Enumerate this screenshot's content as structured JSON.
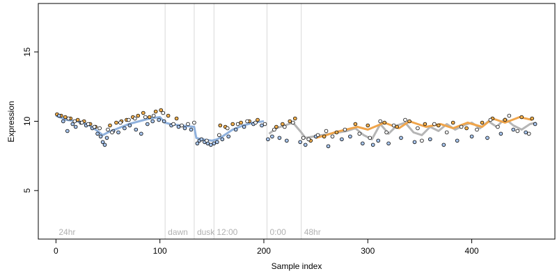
{
  "chart_data": {
    "type": "scatter",
    "title": "",
    "xlabel": "Sample index",
    "ylabel": "Expression",
    "xlim": [
      -17,
      480
    ],
    "ylim": [
      1.5,
      18.5
    ],
    "xticks": [
      0,
      100,
      200,
      300,
      400
    ],
    "yticks": [
      5,
      10,
      15
    ],
    "grid": false,
    "legend": "none",
    "colors": {
      "point_blue": "#a9c6ee",
      "point_orange": "#f4b04e",
      "point_stroke": "#000000",
      "line_blue": "#8fb1dd",
      "line_gray": "#b5b5b5",
      "line_orange": "#f0a54b",
      "divider": "#d9d9d9",
      "region_label": "#b0b0b0"
    },
    "regions": [
      {
        "label": "24hr",
        "x": 0
      },
      {
        "label": "dawn",
        "x": 105
      },
      {
        "label": "dusk",
        "x": 133
      },
      {
        "label": "12:00",
        "x": 152
      },
      {
        "label": "0:00",
        "x": 203
      },
      {
        "label": "48hr",
        "x": 236
      }
    ],
    "series": [
      {
        "color": "orange",
        "x": [
          1,
          5,
          9,
          14,
          21,
          27,
          33,
          38,
          52,
          58,
          63,
          68,
          74,
          79,
          84,
          90,
          96,
          101,
          108,
          116,
          158,
          163,
          170,
          178,
          186,
          194,
          212,
          218,
          225,
          230,
          245,
          258,
          270,
          288,
          300,
          316,
          328,
          340,
          355,
          368,
          382,
          395,
          410,
          420,
          432,
          448,
          458
        ],
        "y": [
          10.5,
          10.4,
          10.3,
          10.2,
          10.1,
          10.0,
          9.8,
          9.6,
          9.7,
          9.9,
          10.0,
          10.1,
          10.3,
          10.4,
          10.6,
          10.3,
          10.7,
          10.8,
          10.4,
          10.2,
          9.7,
          9.6,
          9.8,
          9.9,
          10.0,
          10.1,
          9.6,
          9.8,
          10.0,
          10.2,
          8.6,
          8.9,
          9.2,
          9.8,
          9.7,
          9.9,
          9.6,
          10.0,
          9.8,
          9.7,
          9.9,
          9.5,
          9.9,
          10.2,
          10.1,
          10.3,
          10.2
        ]
      },
      {
        "color": "blue",
        "x": [
          3,
          7,
          11,
          16,
          19,
          24,
          29,
          35,
          40,
          43,
          45,
          47,
          49,
          55,
          60,
          66,
          71,
          77,
          82,
          88,
          93,
          99,
          104,
          111,
          118,
          124,
          130,
          136,
          138,
          140,
          143,
          146,
          149,
          152,
          155,
          160,
          166,
          173,
          181,
          190,
          198,
          204,
          208,
          215,
          222,
          235,
          240,
          250,
          262,
          275,
          283,
          295,
          305,
          310,
          320,
          332,
          345,
          360,
          373,
          386,
          400,
          415,
          428,
          440,
          452,
          461
        ],
        "y": [
          10.4,
          10.0,
          9.3,
          9.8,
          9.6,
          9.9,
          9.7,
          9.5,
          9.1,
          8.9,
          8.5,
          8.3,
          8.8,
          9.3,
          9.2,
          9.5,
          9.7,
          9.4,
          9.1,
          9.8,
          10.0,
          10.1,
          10.0,
          9.7,
          9.6,
          9.5,
          9.4,
          8.4,
          8.6,
          8.7,
          8.5,
          8.4,
          8.3,
          8.4,
          8.5,
          8.7,
          8.9,
          9.4,
          9.6,
          9.8,
          9.7,
          8.7,
          8.9,
          8.8,
          8.6,
          8.5,
          8.3,
          8.9,
          8.2,
          8.7,
          8.9,
          8.4,
          8.3,
          8.6,
          8.4,
          8.8,
          8.5,
          8.7,
          8.3,
          8.6,
          8.9,
          8.8,
          9.1,
          9.4,
          9.2,
          9.8
        ]
      },
      {
        "color": "white",
        "x": [
          12,
          18,
          25,
          31,
          37,
          42,
          50,
          54,
          62,
          70,
          76,
          86,
          94,
          103,
          113,
          121,
          127,
          133,
          145,
          157,
          165,
          175,
          184,
          192,
          201,
          210,
          220,
          228,
          238,
          243,
          252,
          260,
          266,
          278,
          292,
          302,
          312,
          318,
          325,
          336,
          348,
          352,
          364,
          376,
          390,
          405,
          418,
          425,
          436,
          444,
          455
        ],
        "y": [
          10.2,
          10.0,
          9.9,
          9.8,
          9.6,
          9.5,
          9.4,
          9.2,
          9.9,
          10.1,
          10.2,
          10.3,
          10.4,
          10.6,
          9.8,
          9.7,
          9.8,
          9.9,
          8.6,
          9.0,
          9.5,
          9.8,
          10.0,
          9.9,
          9.8,
          9.4,
          9.6,
          9.9,
          8.8,
          8.7,
          9.0,
          9.3,
          8.9,
          9.4,
          9.1,
          8.8,
          10.0,
          9.2,
          9.7,
          10.1,
          9.5,
          8.6,
          9.8,
          9.2,
          9.6,
          9.4,
          10.1,
          9.6,
          10.4,
          9.3,
          9.1
        ]
      }
    ],
    "trend_lines": [
      {
        "color": "blue",
        "x": [
          0,
          10,
          20,
          30,
          40,
          45,
          50,
          60,
          70,
          80,
          90,
          100,
          105,
          110,
          120,
          133,
          135,
          140,
          150,
          155,
          160,
          170,
          180,
          190,
          200
        ],
        "y": [
          10.4,
          10.1,
          10.0,
          9.8,
          9.3,
          9.0,
          9.2,
          9.5,
          9.8,
          10.0,
          10.2,
          10.3,
          9.9,
          9.8,
          9.7,
          9.6,
          8.8,
          8.7,
          8.6,
          8.7,
          8.9,
          9.4,
          9.7,
          9.9,
          10.0
        ]
      },
      {
        "color": "gray",
        "x": [
          205,
          212,
          220,
          228,
          236,
          240,
          248,
          256,
          264,
          272,
          280,
          288,
          296,
          304,
          312,
          320,
          328,
          336,
          344,
          352,
          360,
          368,
          376,
          384,
          392,
          400,
          408,
          416,
          424,
          432,
          440,
          448,
          456,
          462
        ],
        "y": [
          9.1,
          9.5,
          9.7,
          9.9,
          9.2,
          8.8,
          8.9,
          9.0,
          9.1,
          9.2,
          9.3,
          9.5,
          9.0,
          8.7,
          9.8,
          9.1,
          9.7,
          9.9,
          9.2,
          9.0,
          9.6,
          9.3,
          9.8,
          9.4,
          9.7,
          9.9,
          9.5,
          10.0,
          9.6,
          10.2,
          9.7,
          9.4,
          9.8,
          9.9
        ]
      },
      {
        "color": "orange",
        "x": [
          250,
          260,
          268,
          290,
          300,
          316,
          330,
          340,
          356,
          370,
          382,
          396,
          410,
          420,
          432,
          446,
          458
        ],
        "y": [
          8.8,
          9.0,
          9.2,
          9.6,
          9.4,
          9.9,
          9.5,
          10.0,
          9.6,
          9.8,
          9.5,
          9.9,
          9.6,
          10.2,
          9.9,
          10.3,
          10.1
        ]
      }
    ]
  }
}
